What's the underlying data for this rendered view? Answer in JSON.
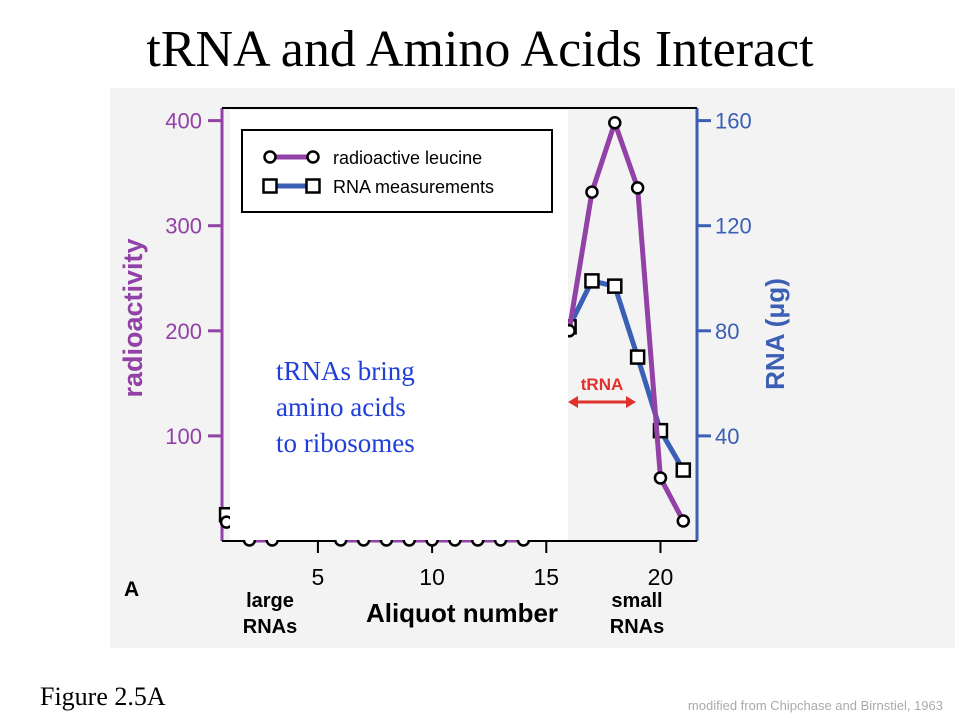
{
  "title": "tRNA and Amino Acids Interact",
  "caption": "Figure 2.5A",
  "credit": "modified from Chipchase and Birnstiel, 1963",
  "chart_data": {
    "type": "line",
    "panel_label": "A",
    "xlabel": "Aliquot number",
    "ylabel": "radioactivity",
    "y2label": "RNA (μg)",
    "region_left": [
      "large",
      "RNAs"
    ],
    "region_right": [
      "small",
      "RNAs"
    ],
    "range_label": "tRNA",
    "annotation": [
      "tRNAs bring",
      "amino acids",
      "to ribosomes"
    ],
    "x": [
      1,
      2,
      3,
      4,
      5,
      6,
      7,
      8,
      9,
      10,
      11,
      12,
      13,
      14,
      15,
      16,
      17,
      18,
      19,
      20,
      21
    ],
    "xlim": [
      0.8,
      21.6
    ],
    "xticks": [
      5,
      10,
      15,
      20
    ],
    "ylim": [
      0,
      412
    ],
    "yticks": [
      100,
      200,
      300,
      400
    ],
    "y2lim": [
      0,
      164.8
    ],
    "y2ticks": [
      40,
      80,
      120,
      160
    ],
    "series": [
      {
        "name": "radioactive leucine",
        "color": "#9241a6",
        "marker": "circle",
        "values": [
          18,
          1,
          1,
          null,
          null,
          1,
          1,
          1,
          1,
          1,
          1,
          1,
          1,
          1,
          null,
          200,
          332,
          398,
          336,
          60,
          19
        ]
      },
      {
        "name": "RNA measurements",
        "color": "#3b5fb4",
        "marker": "square",
        "axis": "y2",
        "values": [
          10,
          null,
          null,
          null,
          null,
          null,
          null,
          null,
          null,
          null,
          null,
          null,
          null,
          null,
          null,
          81.5,
          99,
          97,
          70,
          42,
          27
        ]
      }
    ]
  }
}
